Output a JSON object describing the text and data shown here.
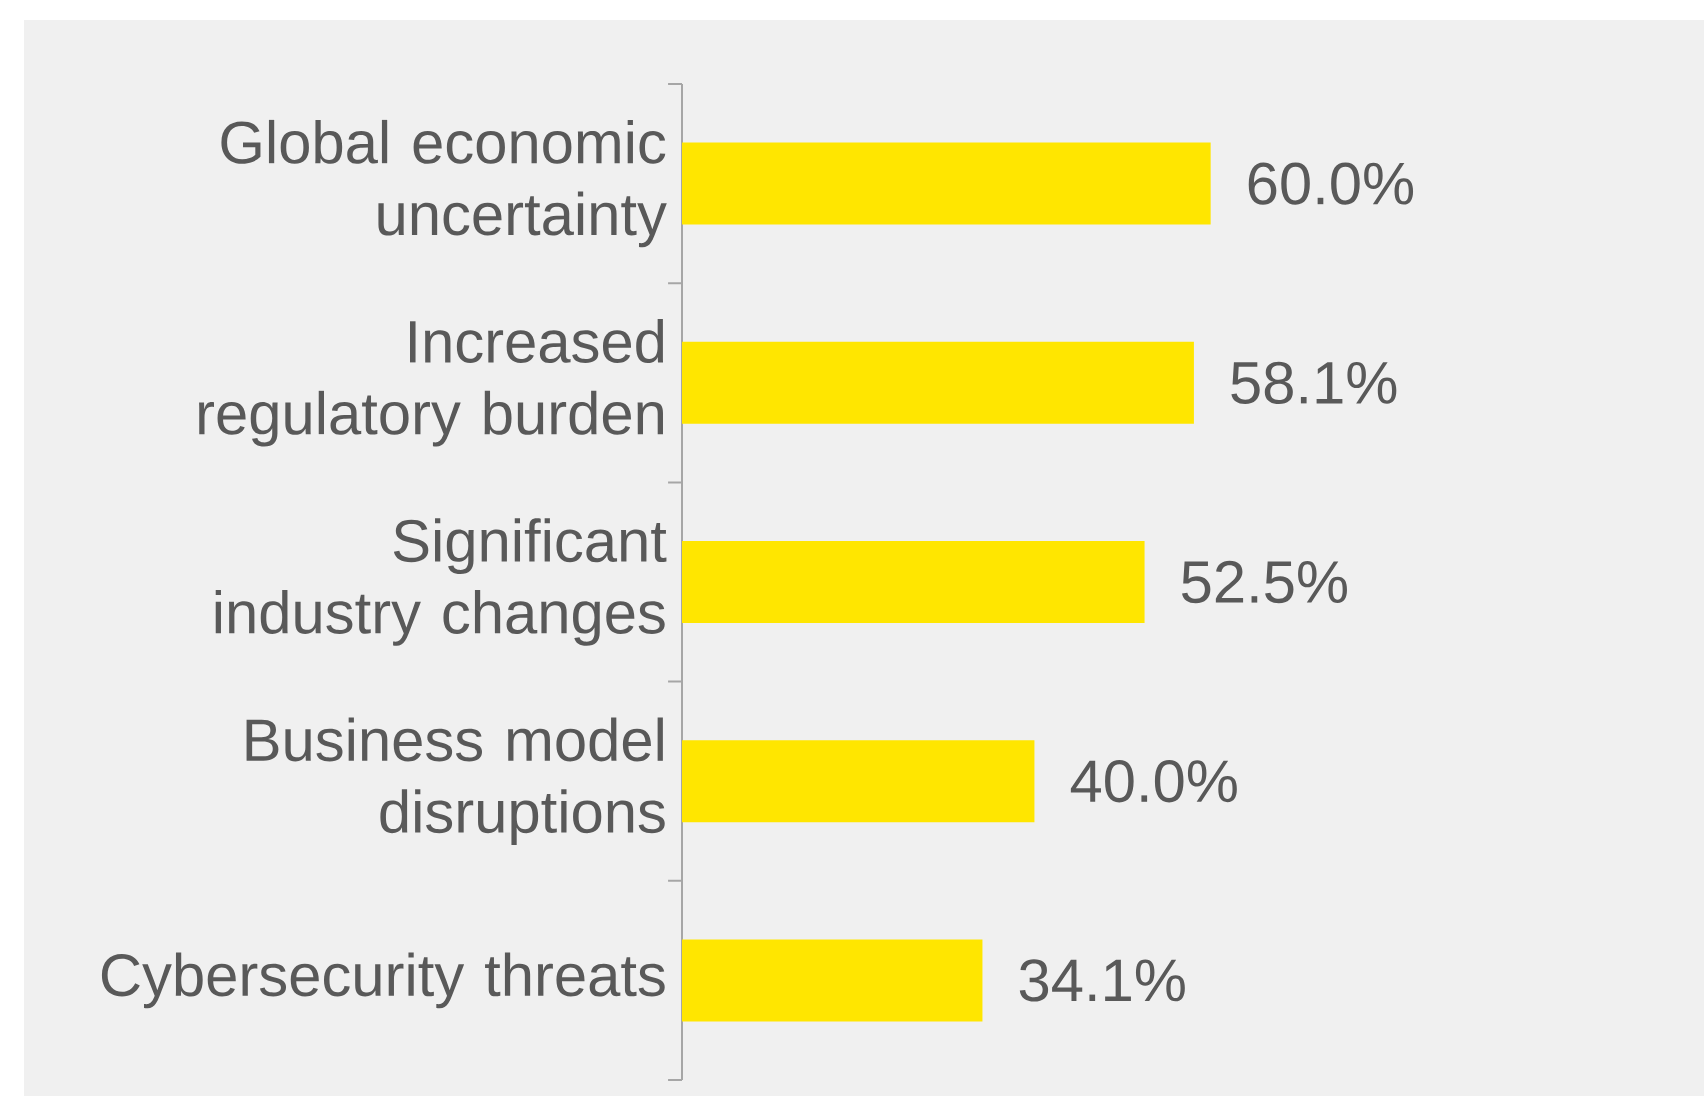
{
  "chart_data": {
    "type": "bar",
    "orientation": "horizontal",
    "categories": [
      "Global economic uncertainty",
      "Increased regulatory burden",
      "Significant industry changes",
      "Business model disruptions",
      "Cybersecurity threats"
    ],
    "values": [
      60.0,
      58.1,
      52.5,
      40.0,
      34.1
    ],
    "value_labels": [
      "60.0%",
      "58.1%",
      "52.5%",
      "40.0%",
      "34.1%"
    ],
    "color": "#ffe600"
  }
}
